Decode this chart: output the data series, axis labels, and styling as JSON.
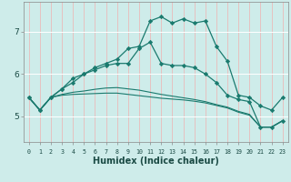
{
  "xlabel": "Humidex (Indice chaleur)",
  "background_color": "#ceecea",
  "grid_color": "#ffffff",
  "line_color": "#1a7a6e",
  "x_values": [
    0,
    1,
    2,
    3,
    4,
    5,
    6,
    7,
    8,
    9,
    10,
    11,
    12,
    13,
    14,
    15,
    16,
    17,
    18,
    19,
    20,
    21,
    22,
    23
  ],
  "lines": [
    [
      5.45,
      5.15,
      5.45,
      5.65,
      5.8,
      6.0,
      6.15,
      6.25,
      6.35,
      6.6,
      6.65,
      7.25,
      7.35,
      7.2,
      7.3,
      7.2,
      7.25,
      6.65,
      6.3,
      5.5,
      5.45,
      5.25,
      5.15,
      5.45
    ],
    [
      5.45,
      5.15,
      5.45,
      5.65,
      5.9,
      6.0,
      6.1,
      6.2,
      6.25,
      6.25,
      6.6,
      6.75,
      6.25,
      6.2,
      6.2,
      6.15,
      6.0,
      5.8,
      5.5,
      5.4,
      5.35,
      4.75,
      4.75,
      4.9
    ],
    [
      5.45,
      5.15,
      5.45,
      5.52,
      5.57,
      5.6,
      5.64,
      5.67,
      5.68,
      5.65,
      5.62,
      5.57,
      5.52,
      5.48,
      5.44,
      5.4,
      5.35,
      5.28,
      5.22,
      5.12,
      5.05,
      4.75,
      4.75,
      4.9
    ],
    [
      5.45,
      5.15,
      5.45,
      5.5,
      5.52,
      5.53,
      5.54,
      5.55,
      5.55,
      5.52,
      5.49,
      5.46,
      5.43,
      5.41,
      5.39,
      5.36,
      5.32,
      5.26,
      5.2,
      5.1,
      5.03,
      4.75,
      4.75,
      4.9
    ]
  ],
  "yticks": [
    5,
    6,
    7
  ],
  "xlim": [
    -0.5,
    23.5
  ],
  "ylim": [
    4.4,
    7.7
  ]
}
